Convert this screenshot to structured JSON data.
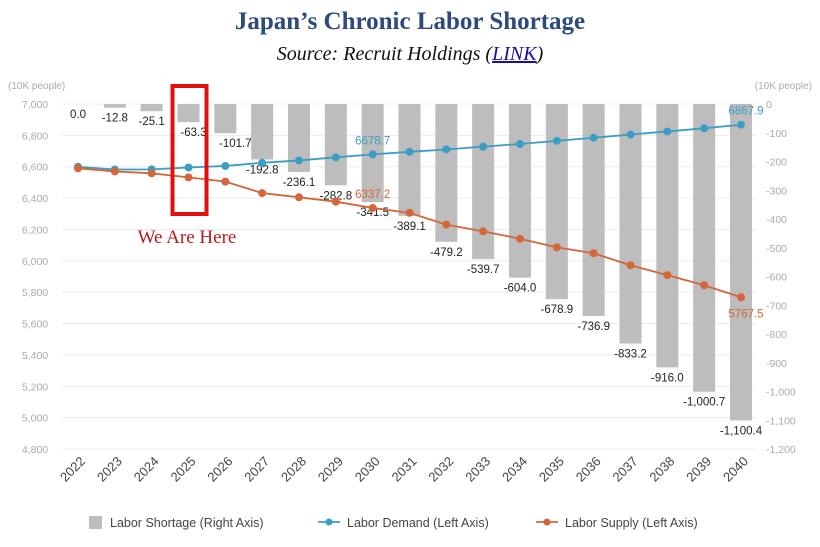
{
  "title": "Japan’s Chronic Labor Shortage",
  "subtitle_prefix": "Source: Recruit Holdings (",
  "subtitle_link": "LINK",
  "subtitle_suffix": ")",
  "annotation": "We Are Here",
  "chart_data": {
    "type": "bar+line",
    "categories": [
      "2022",
      "2023",
      "2024",
      "2025",
      "2026",
      "2027",
      "2028",
      "2029",
      "2030",
      "2031",
      "2032",
      "2033",
      "2034",
      "2035",
      "2036",
      "2037",
      "2038",
      "2039",
      "2040"
    ],
    "left_axis": {
      "unit": "(10K people)",
      "ylim": [
        4800,
        7000
      ],
      "ticks": [
        7000,
        6800,
        6600,
        6400,
        6200,
        6000,
        5800,
        5600,
        5400,
        5200,
        5000,
        4800
      ],
      "tick_labels": [
        "7,000",
        "6,800",
        "6,600",
        "6,400",
        "6,200",
        "6,000",
        "5,800",
        "5,600",
        "5,400",
        "5,200",
        "5,000",
        "4,800"
      ]
    },
    "right_axis": {
      "unit": "(10K people)",
      "ylim": [
        -1200,
        0
      ],
      "ticks": [
        0,
        -100,
        -200,
        -300,
        -400,
        -500,
        -600,
        -700,
        -800,
        -900,
        -1000,
        -1100,
        -1200
      ],
      "tick_labels": [
        "0",
        "-100",
        "-200",
        "-300",
        "-400",
        "-500",
        "-600",
        "-700",
        "-800",
        "-900",
        "-1,000",
        "-1,100",
        "-1,200"
      ]
    },
    "series": [
      {
        "name": "Labor Shortage (Right Axis)",
        "type": "bar",
        "axis": "right",
        "color": "#bdbdbd",
        "values": [
          0.0,
          -12.8,
          -25.1,
          -63.3,
          -101.7,
          -192.8,
          -236.1,
          -282.8,
          -341.5,
          -389.1,
          -479.2,
          -539.7,
          -604.0,
          -678.9,
          -736.9,
          -833.2,
          -916.0,
          -1000.7,
          -1100.4
        ],
        "labels": [
          "0.0",
          "-12.8",
          "-25.1",
          "-63.3",
          "-101.7",
          "-192.8",
          "-236.1",
          "-282.8",
          "-341.5",
          "-389.1",
          "-479.2",
          "-539.7",
          "-604.0",
          "-678.9",
          "-736.9",
          "-833.2",
          "-916.0",
          "-1,000.7",
          "-1,100.4"
        ]
      },
      {
        "name": "Labor Demand (Left Axis)",
        "type": "line",
        "axis": "left",
        "color": "#3a9ec4",
        "values": [
          6600,
          6582,
          6583,
          6595,
          6605,
          6625,
          6640,
          6660,
          6678.7,
          6695,
          6710,
          6728,
          6745,
          6765,
          6785,
          6805,
          6825,
          6845,
          6867.9
        ],
        "data_labels": {
          "8": "6678.7",
          "18": "6867.9"
        }
      },
      {
        "name": "Labor Supply (Left Axis)",
        "type": "line",
        "axis": "left",
        "color": "#d4663a",
        "values": [
          6590,
          6570,
          6558,
          6532,
          6505,
          6432,
          6405,
          6377,
          6337.2,
          6306,
          6231,
          6188,
          6141,
          6086,
          6048,
          5972,
          5909,
          5844,
          5767.5
        ],
        "data_labels": {
          "8": "6337.2",
          "18": "5767.5"
        }
      }
    ],
    "highlight": {
      "category": "2025",
      "color": "#e01010"
    },
    "grid": true,
    "legend": "bottom"
  }
}
